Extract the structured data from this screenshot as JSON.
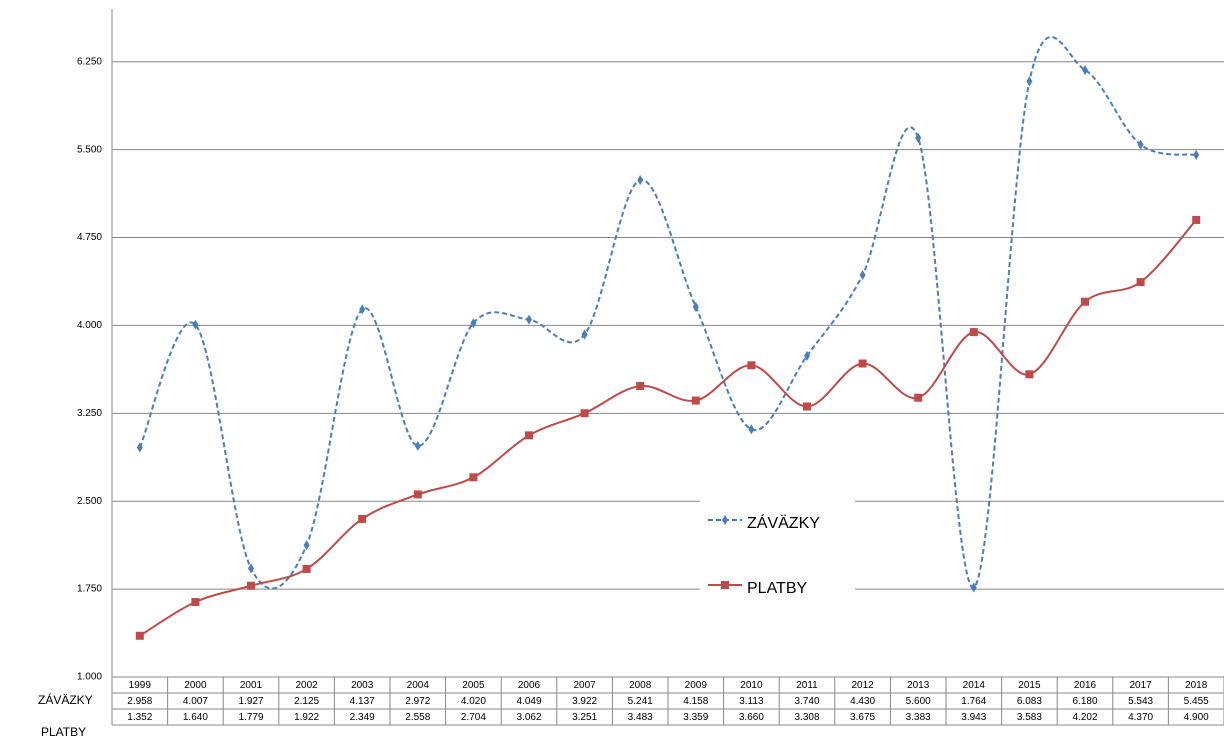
{
  "chart_data": {
    "type": "line",
    "categories": [
      "1999",
      "2000",
      "2001",
      "2002",
      "2003",
      "2004",
      "2005",
      "2006",
      "2007",
      "2008",
      "2009",
      "2010",
      "2011",
      "2012",
      "2013",
      "2014",
      "2015",
      "2016",
      "2017",
      "2018"
    ],
    "series": [
      {
        "name": "ZÁVÄZKY",
        "color": "#4a7ebb",
        "dashed": true,
        "marker": "diamond",
        "values": [
          2958,
          4007,
          1927,
          2125,
          4137,
          2972,
          4020,
          4049,
          3922,
          5241,
          4158,
          3113,
          3740,
          4430,
          5600,
          1764,
          6083,
          6180,
          5543,
          5455
        ],
        "value_labels": [
          "2.958",
          "4.007",
          "1.927",
          "2.125",
          "4.137",
          "2.972",
          "4.020",
          "4.049",
          "3.922",
          "5.241",
          "4.158",
          "3.113",
          "3.740",
          "4.430",
          "5.600",
          "1.764",
          "6.083",
          "6.180",
          "5.543",
          "5.455"
        ]
      },
      {
        "name": "PLATBY",
        "color": "#be4b48",
        "dashed": false,
        "marker": "square",
        "values": [
          1352,
          1640,
          1779,
          1922,
          2349,
          2558,
          2704,
          3062,
          3251,
          3483,
          3359,
          3660,
          3308,
          3675,
          3383,
          3943,
          3583,
          4202,
          4370,
          4900
        ],
        "value_labels": [
          "1.352",
          "1.640",
          "1.779",
          "1.922",
          "2.349",
          "2.558",
          "2.704",
          "3.062",
          "3.251",
          "3.483",
          "3.359",
          "3.660",
          "3.308",
          "3.675",
          "3.383",
          "3.943",
          "3.583",
          "4.202",
          "4.370",
          "4.900"
        ]
      }
    ],
    "ylim": [
      1000,
      6700
    ],
    "yticks": [
      {
        "value": 1000,
        "label": "1.000"
      },
      {
        "value": 1750,
        "label": "1.750"
      },
      {
        "value": 2500,
        "label": "2.500"
      },
      {
        "value": 3250,
        "label": "3.250"
      },
      {
        "value": 4000,
        "label": "4.000"
      },
      {
        "value": 4750,
        "label": "4.750"
      },
      {
        "value": 5500,
        "label": "5.500"
      },
      {
        "value": 6250,
        "label": "6.250"
      }
    ],
    "grid": true,
    "smooth": true
  }
}
